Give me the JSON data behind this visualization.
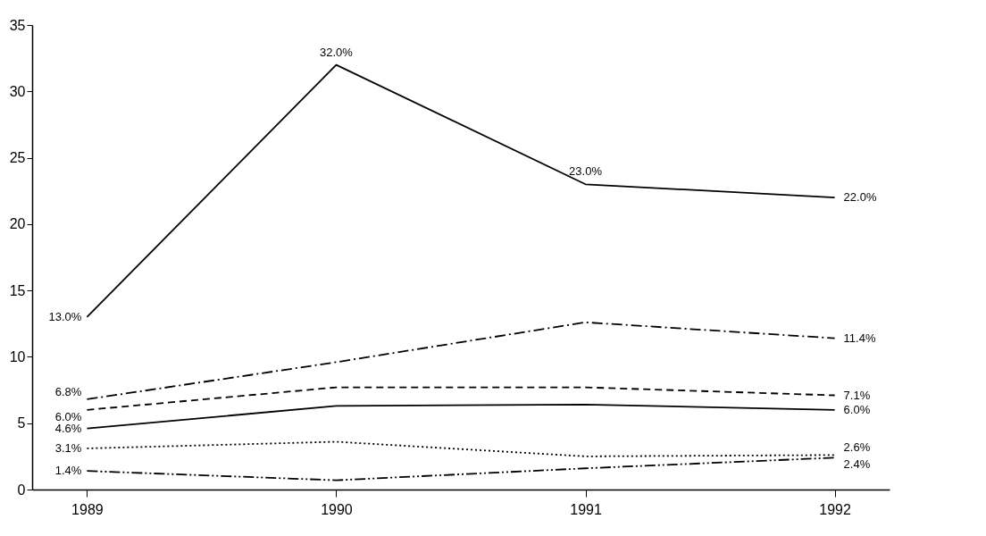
{
  "chart_data": {
    "type": "line",
    "categories": [
      "1989",
      "1990",
      "1991",
      "1992"
    ],
    "series": [
      {
        "color": "#000000",
        "line_style": "solid",
        "values": [
          13.0,
          32.0,
          23.0,
          22.0
        ],
        "value_labels": [
          "13.0%",
          "32.0%",
          "23.0%",
          "22.0%"
        ]
      },
      {
        "color": "#000000",
        "line_style": "dashdot",
        "values": [
          6.8,
          9.6,
          12.6,
          11.4
        ],
        "value_labels": [
          "6.8%",
          null,
          null,
          "11.4%"
        ]
      },
      {
        "color": "#000000",
        "line_style": "dashed",
        "values": [
          6.0,
          7.7,
          7.7,
          7.1
        ],
        "value_labels": [
          "6.0%",
          null,
          null,
          "7.1%"
        ]
      },
      {
        "color": "#000000",
        "line_style": "solid",
        "values": [
          4.6,
          6.3,
          6.4,
          6.0
        ],
        "value_labels": [
          "4.6%",
          null,
          null,
          "6.0%"
        ]
      },
      {
        "color": "#000000",
        "line_style": "dotted",
        "values": [
          3.1,
          3.6,
          2.5,
          2.6
        ],
        "value_labels": [
          "3.1%",
          null,
          null,
          "2.6%"
        ]
      },
      {
        "color": "#000000",
        "line_style": "dashdotdot",
        "values": [
          1.4,
          0.7,
          1.6,
          2.4
        ],
        "value_labels": [
          "1.4%",
          null,
          null,
          "2.4%"
        ]
      }
    ],
    "ylim": [
      0,
      35
    ],
    "yticks": [
      0,
      5,
      10,
      15,
      20,
      25,
      30,
      35
    ],
    "grid": false,
    "marker": "none"
  }
}
